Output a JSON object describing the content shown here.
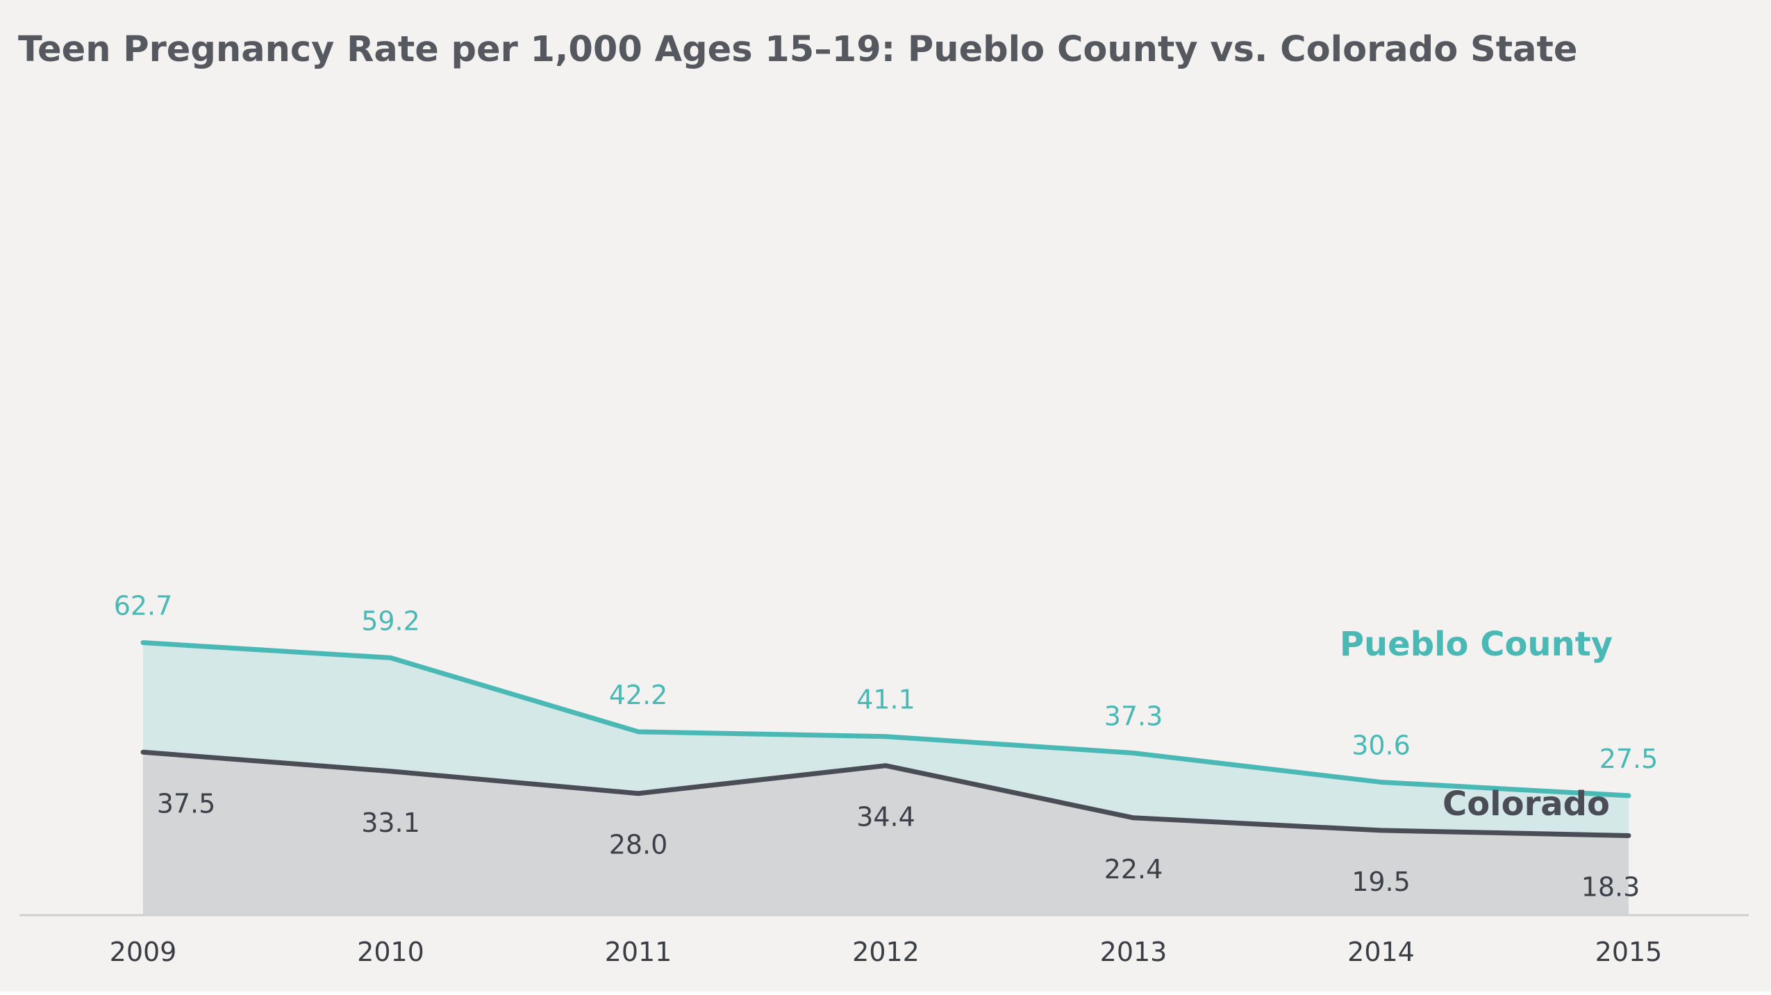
{
  "chart_data": {
    "type": "area",
    "title": "Teen Pregnancy Rate per 1,000 Ages 15–19: Pueblo County vs. Colorado State",
    "xlabel": "",
    "ylabel": "",
    "categories": [
      "2009",
      "2010",
      "2011",
      "2012",
      "2013",
      "2014",
      "2015"
    ],
    "ylim": [
      0,
      75
    ],
    "grid": false,
    "series": [
      {
        "name": "Pueblo County",
        "values": [
          62.7,
          59.2,
          42.2,
          41.1,
          37.3,
          30.6,
          27.5
        ],
        "labels": [
          "62.7",
          "59.2",
          "42.2",
          "41.1",
          "37.3",
          "30.6",
          "27.5"
        ],
        "line_color": "#4ab8b5",
        "fill_color": "#d3e8e7"
      },
      {
        "name": "Colorado",
        "values": [
          37.5,
          33.1,
          28.0,
          34.4,
          22.4,
          19.5,
          18.3
        ],
        "labels": [
          "37.5",
          "33.1",
          "28.0",
          "34.4",
          "22.4",
          "19.5",
          "18.3"
        ],
        "line_color": "#4a4d55",
        "fill_color": "#d4d5d7"
      }
    ],
    "legend": [
      {
        "name": "Pueblo County",
        "color": "#4ab8b5",
        "placement": "right, between lines"
      },
      {
        "name": "Colorado",
        "color": "#4a4d55",
        "placement": "bottom-right"
      }
    ]
  },
  "colors": {
    "background": "#f3f2f1",
    "axis_line": "#cfcfcf"
  }
}
